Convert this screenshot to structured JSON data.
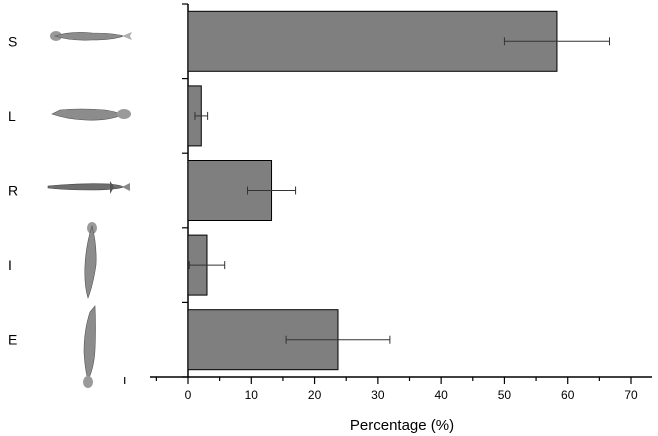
{
  "chart_data": {
    "type": "bar",
    "orientation": "horizontal",
    "categories": [
      "S",
      "L",
      "R",
      "I",
      "E"
    ],
    "values": [
      58.3,
      2.1,
      13.2,
      3.0,
      23.7
    ],
    "errors": [
      8.3,
      1.0,
      3.8,
      2.8,
      8.2
    ],
    "xlabel": "Percentage (%)",
    "ylabel": "",
    "xlim": [
      -10,
      70
    ],
    "xticks": [
      "0",
      "10",
      "20",
      "30",
      "40",
      "50",
      "60",
      "70"
    ],
    "grid": false,
    "legend": "none",
    "bar_color": "#7f7f7f",
    "outline_color": "#000000",
    "icons": [
      "fish-horizontal-head-left-icon",
      "fish-horizontal-head-right-icon",
      "fish-horizontal-slim-icon",
      "fish-vertical-head-up-icon",
      "fish-vertical-head-down-icon"
    ]
  }
}
